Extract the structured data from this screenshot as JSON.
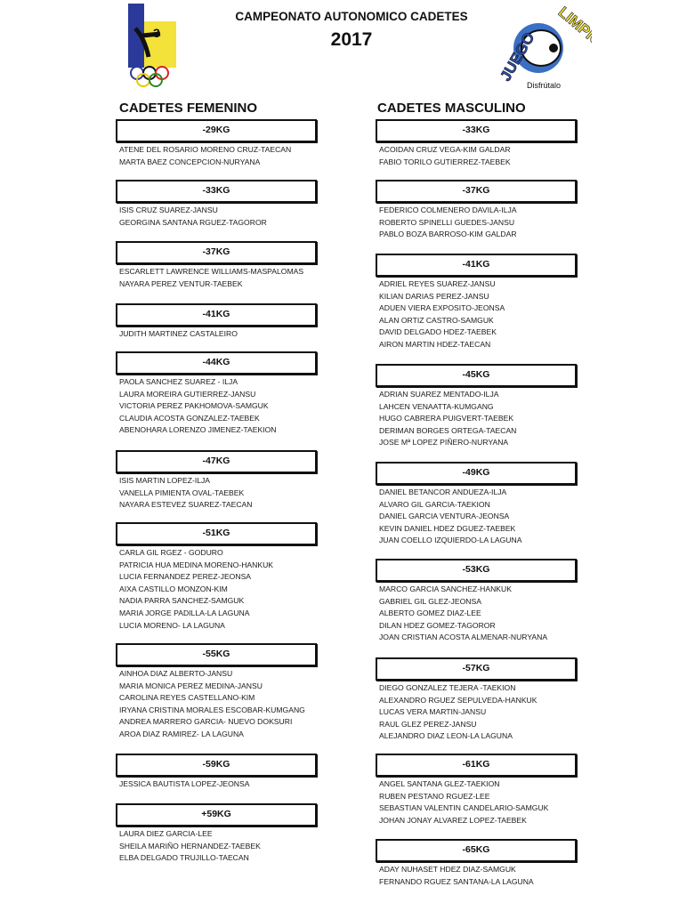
{
  "header": {
    "title": "CAMPEONATO AUTONOMICO CADETES",
    "year": "2017",
    "left_logo": "FEDERACIÓN CANARIA DE TAEKWONDO Y D.A.",
    "right_logo": "JUEGO LIMPIO",
    "right_logo_tagline": "Disfrútalo"
  },
  "colors": {
    "blue": "#2b3a9a",
    "yellow": "#f3e23a",
    "text": "#111111"
  },
  "femenino": {
    "heading": "CADETES FEMENINO",
    "categories": [
      {
        "label": "-29KG",
        "names": [
          "ATENE DEL ROSARIO MORENO CRUZ-TAECAN",
          "MARTA BAEZ CONCEPCION-NURYANA"
        ]
      },
      {
        "label": "-33KG",
        "names": [
          "ISIS CRUZ SUAREZ-JANSU",
          "GEORGINA SANTANA RGUEZ-TAGOROR"
        ]
      },
      {
        "label": "-37KG",
        "names": [
          "ESCARLETT LAWRENCE WILLIAMS-MASPALOMAS",
          "NAYARA PEREZ VENTUR-TAEBEK"
        ]
      },
      {
        "label": "-41KG",
        "names": [
          "JUDITH MARTINEZ CASTALEIRO"
        ]
      },
      {
        "label": "-44KG",
        "names": [
          "PAOLA SANCHEZ SUAREZ - ILJA",
          "LAURA MOREIRA GUTIERREZ-JANSU",
          "VICTORIA PEREZ PAKHOMOVA-SAMGUK",
          "CLAUDIA ACOSTA GONZALEZ-TAEBEK",
          "ABENOHARA LORENZO JIMENEZ-TAEKION"
        ]
      },
      {
        "label": "-47KG",
        "names": [
          "ISIS MARTIN LOPEZ-ILJA",
          "VANELLA PIMIENTA OVAL-TAEBEK",
          "NAYARA ESTEVEZ SUAREZ-TAECAN"
        ]
      },
      {
        "label": "-51KG",
        "names": [
          "CARLA GIL RGEZ - GODURO",
          "PATRICIA HUA MEDINA MORENO-HANKUK",
          "LUCIA FERNANDEZ PEREZ-JEONSA",
          "AIXA CASTILLO MONZON-KIM",
          "NADIA PARRA SANCHEZ-SAMGUK",
          "MARIA JORGE PADILLA-LA LAGUNA",
          "LUCIA MORENO- LA LAGUNA"
        ]
      },
      {
        "label": "-55KG",
        "names": [
          "AINHOA DIAZ ALBERTO-JANSU",
          "MARIA MONICA PEREZ MEDINA-JANSU",
          "CAROLINA REYES CASTELLANO-KIM",
          "IRYANA CRISTINA MORALES ESCOBAR-KUMGANG",
          "ANDREA MARRERO GARCIA- NUEVO DOKSURI",
          "AROA DIAZ RAMIREZ- LA LAGUNA"
        ]
      },
      {
        "label": "-59KG",
        "names": [
          "JESSICA BAUTISTA LOPEZ-JEONSA"
        ]
      },
      {
        "label": "+59KG",
        "names": [
          "LAURA DIEZ GARCIA-LEE",
          "SHEILA MARIÑO HERNANDEZ-TAEBEK",
          "ELBA DELGADO TRUJILLO-TAECAN"
        ]
      }
    ]
  },
  "masculino": {
    "heading": "CADETES MASCULINO",
    "categories": [
      {
        "label": "-33KG",
        "names": [
          "ACOIDAN CRUZ VEGA-KIM GALDAR",
          "FABIO TORILO GUTIERREZ-TAEBEK"
        ]
      },
      {
        "label": "-37KG",
        "names": [
          "FEDERICO COLMENERO DAVILA-ILJA",
          "ROBERTO SPINELLI GUEDES-JANSU",
          "PABLO BOZA BARROSO-KIM GALDAR"
        ]
      },
      {
        "label": "-41KG",
        "names": [
          "ADRIEL REYES SUAREZ-JANSU",
          "KILIAN DARIAS PEREZ-JANSU",
          "ADUEN VIERA EXPOSITO-JEONSA",
          "ALAN ORTIZ CASTRO-SAMGUK",
          "DAVID DELGADO HDEZ-TAEBEK",
          "AIRON MARTIN HDEZ-TAECAN"
        ]
      },
      {
        "label": "-45KG",
        "names": [
          "ADRIAN SUAREZ MENTADO-ILJA",
          "LAHCEN VENAATTA-KUMGANG",
          "HUGO CABRERA PUIGVERT-TAEBEK",
          "DERIMAN BORGES ORTEGA-TAECAN",
          "JOSE Mª LOPEZ PIÑERO-NURYANA"
        ]
      },
      {
        "label": "-49KG",
        "names": [
          "DANIEL BETANCOR ANDUEZA-ILJA",
          "ALVARO GIL GARCIA-TAEKION",
          "DANIEL GARCIA VENTURA-JEONSA",
          "KEVIN DANIEL HDEZ DGUEZ-TAEBEK",
          "JUAN COELLO IZQUIERDO-LA LAGUNA"
        ]
      },
      {
        "label": "-53KG",
        "names": [
          "MARCO GARCIA SANCHEZ-HANKUK",
          "GABRIEL GIL GLEZ-JEONSA",
          "ALBERTO GOMEZ DIAZ-LEE",
          "DILAN HDEZ GOMEZ-TAGOROR",
          "JOAN CRISTIAN ACOSTA ALMENAR-NURYANA"
        ]
      },
      {
        "label": "-57KG",
        "names": [
          "DIEGO GONZALEZ TEJERA -TAEKION",
          "ALEXANDRO RGUEZ SEPULVEDA-HANKUK",
          "LUCAS VERA MARTIN-JANSU",
          "RAUL GLEZ PEREZ-JANSU",
          "ALEJANDRO DIAZ LEON-LA LAGUNA"
        ]
      },
      {
        "label": "-61KG",
        "names": [
          "ANGEL SANTANA GLEZ-TAEKION",
          "RUBEN PESTANO RGUEZ-LEE",
          "SEBASTIAN VALENTIN CANDELARIO-SAMGUK",
          "JOHAN JONAY ALVAREZ LOPEZ-TAEBEK"
        ]
      },
      {
        "label": "-65KG",
        "names": [
          "ADAY NUHASET HDEZ DIAZ-SAMGUK",
          "FERNANDO RGUEZ SANTANA-LA LAGUNA"
        ]
      }
    ]
  }
}
